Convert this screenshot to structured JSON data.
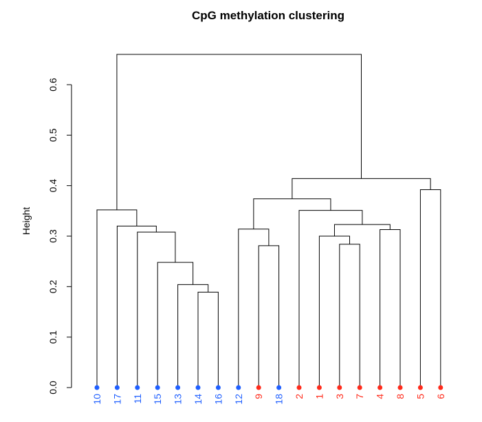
{
  "chart_data": {
    "type": "dendrogram",
    "title": "CpG methylation clustering",
    "ylabel": "Height",
    "xlabel": "",
    "ylim": [
      0,
      0.6
    ],
    "yticks": [
      0.0,
      0.1,
      0.2,
      0.3,
      0.4,
      0.5,
      0.6
    ],
    "ytick_labels": [
      "0.0",
      "0.1",
      "0.2",
      "0.3",
      "0.4",
      "0.5",
      "0.6"
    ],
    "grid": false,
    "legend": "none",
    "colors": {
      "blue": "#1f5fff",
      "red": "#ff2a1a"
    },
    "leaves": [
      {
        "label": "10",
        "color": "blue"
      },
      {
        "label": "17",
        "color": "blue"
      },
      {
        "label": "11",
        "color": "blue"
      },
      {
        "label": "15",
        "color": "blue"
      },
      {
        "label": "13",
        "color": "blue"
      },
      {
        "label": "14",
        "color": "blue"
      },
      {
        "label": "16",
        "color": "blue"
      },
      {
        "label": "12",
        "color": "blue"
      },
      {
        "label": "9",
        "color": "red"
      },
      {
        "label": "18",
        "color": "blue"
      },
      {
        "label": "2",
        "color": "red"
      },
      {
        "label": "1",
        "color": "red"
      },
      {
        "label": "3",
        "color": "red"
      },
      {
        "label": "7",
        "color": "red"
      },
      {
        "label": "4",
        "color": "red"
      },
      {
        "label": "8",
        "color": "red"
      },
      {
        "label": "5",
        "color": "red"
      },
      {
        "label": "6",
        "color": "red"
      }
    ],
    "merges": [
      {
        "left": "14",
        "right": "16",
        "height": 0.189
      },
      {
        "left": "13",
        "right": "14,16",
        "height": 0.204
      },
      {
        "left": "15",
        "right": "13,14,16",
        "height": 0.248
      },
      {
        "left": "11",
        "right": "15,13,14,16",
        "height": 0.308
      },
      {
        "left": "17",
        "right": "11,15,13,14,16",
        "height": 0.32
      },
      {
        "left": "10",
        "right": "17,11,15,13,14,16",
        "height": 0.352
      },
      {
        "left": "9",
        "right": "18",
        "height": 0.281
      },
      {
        "left": "12",
        "right": "9,18",
        "height": 0.314
      },
      {
        "left": "3",
        "right": "7",
        "height": 0.284
      },
      {
        "left": "1",
        "right": "3,7",
        "height": 0.3
      },
      {
        "left": "4",
        "right": "8",
        "height": 0.313
      },
      {
        "left": "1,3,7",
        "right": "4,8",
        "height": 0.323
      },
      {
        "left": "2",
        "right": "1,3,7,4,8",
        "height": 0.351
      },
      {
        "left": "12,9,18",
        "right": "2,1,3,7,4,8",
        "height": 0.374
      },
      {
        "left": "5",
        "right": "6",
        "height": 0.392
      },
      {
        "left": "12,9,18,2,1,3,7,4,8",
        "right": "5,6",
        "height": 0.414
      },
      {
        "left": "10,17,11,15,13,14,16",
        "right": "12,9,18,2,1,3,7,4,8,5,6",
        "height": 0.66
      }
    ]
  }
}
